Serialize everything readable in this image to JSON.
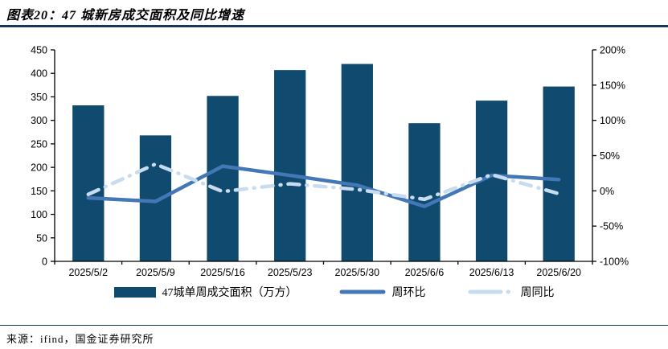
{
  "header": {
    "title": "图表20：47 城新房成交面积及同比增速"
  },
  "footer": {
    "source": "来源：ifind，国金证券研究所"
  },
  "colors": {
    "title_rule": "#17365D",
    "footer_rule": "#17365D",
    "axis_text": "#000000",
    "axis_line": "#000000"
  },
  "chart_data": {
    "type": "bar",
    "subtype": "combo-bar-line-dual-axis",
    "categories": [
      "2025/5/2",
      "2025/5/9",
      "2025/5/16",
      "2025/5/23",
      "2025/5/30",
      "2025/6/6",
      "2025/6/13",
      "2025/6/20"
    ],
    "series": [
      {
        "name": "47城单周成交面积（万方）",
        "type": "bar",
        "axis": "left",
        "color": "#104A6E",
        "values": [
          332,
          268,
          352,
          407,
          420,
          294,
          342,
          372
        ]
      },
      {
        "name": "周环比",
        "type": "line",
        "style": "solid",
        "axis": "right",
        "color": "#4377B6",
        "values_pct": [
          -10,
          -15,
          35,
          22,
          8,
          -22,
          22,
          16
        ]
      },
      {
        "name": "周同比",
        "type": "line",
        "style": "dash-dot",
        "axis": "right",
        "color": "#C8DCF0",
        "values_pct": [
          -5,
          38,
          -1,
          10,
          2,
          -12,
          23,
          -4
        ]
      }
    ],
    "left_axis": {
      "min": 0,
      "max": 450,
      "step": 50
    },
    "right_axis": {
      "min": -100,
      "max": 200,
      "step": 50,
      "suffix": "%"
    },
    "title": "",
    "xlabel": "",
    "ylabel": "",
    "grid": false,
    "legend_position": "bottom"
  }
}
